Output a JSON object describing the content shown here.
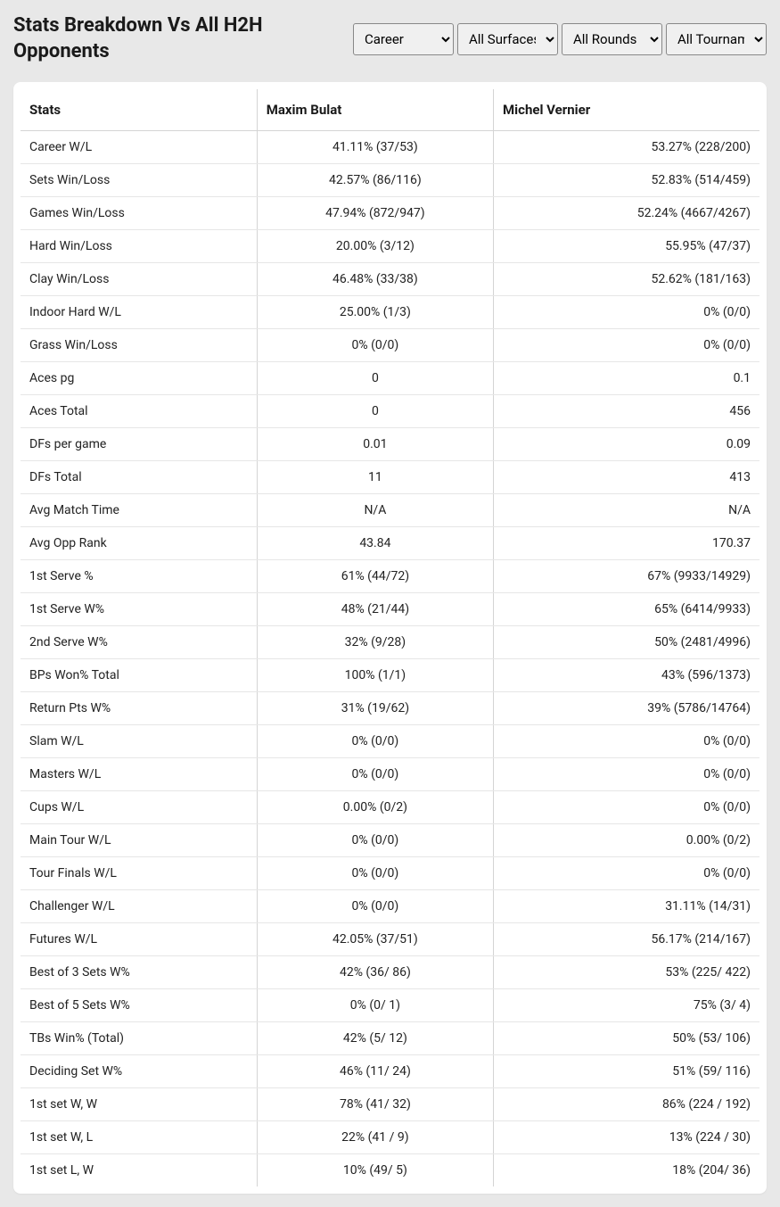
{
  "header": {
    "title": "Stats Breakdown Vs All H2H Opponents"
  },
  "filters": {
    "period": {
      "selected": "Career",
      "options": [
        "Career"
      ]
    },
    "surface": {
      "selected": "All Surfaces",
      "options": [
        "All Surfaces"
      ]
    },
    "rounds": {
      "selected": "All Rounds",
      "options": [
        "All Rounds"
      ]
    },
    "tournament": {
      "selected": "All Tournaments",
      "options": [
        "All Tournaments"
      ]
    }
  },
  "table": {
    "columns": [
      "Stats",
      "Maxim Bulat",
      "Michel Vernier"
    ],
    "rows": [
      [
        "Career W/L",
        "41.11% (37/53)",
        "53.27% (228/200)"
      ],
      [
        "Sets Win/Loss",
        "42.57% (86/116)",
        "52.83% (514/459)"
      ],
      [
        "Games Win/Loss",
        "47.94% (872/947)",
        "52.24% (4667/4267)"
      ],
      [
        "Hard Win/Loss",
        "20.00% (3/12)",
        "55.95% (47/37)"
      ],
      [
        "Clay Win/Loss",
        "46.48% (33/38)",
        "52.62% (181/163)"
      ],
      [
        "Indoor Hard W/L",
        "25.00% (1/3)",
        "0% (0/0)"
      ],
      [
        "Grass Win/Loss",
        "0% (0/0)",
        "0% (0/0)"
      ],
      [
        "Aces pg",
        "0",
        "0.1"
      ],
      [
        "Aces Total",
        "0",
        "456"
      ],
      [
        "DFs per game",
        "0.01",
        "0.09"
      ],
      [
        "DFs Total",
        "11",
        "413"
      ],
      [
        "Avg Match Time",
        "N/A",
        "N/A"
      ],
      [
        "Avg Opp Rank",
        "43.84",
        "170.37"
      ],
      [
        "1st Serve %",
        "61% (44/72)",
        "67% (9933/14929)"
      ],
      [
        "1st Serve W%",
        "48% (21/44)",
        "65% (6414/9933)"
      ],
      [
        "2nd Serve W%",
        "32% (9/28)",
        "50% (2481/4996)"
      ],
      [
        "BPs Won% Total",
        "100% (1/1)",
        "43% (596/1373)"
      ],
      [
        "Return Pts W%",
        "31% (19/62)",
        "39% (5786/14764)"
      ],
      [
        "Slam W/L",
        "0% (0/0)",
        "0% (0/0)"
      ],
      [
        "Masters W/L",
        "0% (0/0)",
        "0% (0/0)"
      ],
      [
        "Cups W/L",
        "0.00% (0/2)",
        "0% (0/0)"
      ],
      [
        "Main Tour W/L",
        "0% (0/0)",
        "0.00% (0/2)"
      ],
      [
        "Tour Finals W/L",
        "0% (0/0)",
        "0% (0/0)"
      ],
      [
        "Challenger W/L",
        "0% (0/0)",
        "31.11% (14/31)"
      ],
      [
        "Futures W/L",
        "42.05% (37/51)",
        "56.17% (214/167)"
      ],
      [
        "Best of 3 Sets W%",
        "42% (36/ 86)",
        "53% (225/ 422)"
      ],
      [
        "Best of 5 Sets W%",
        "0% (0/ 1)",
        "75% (3/ 4)"
      ],
      [
        "TBs Win% (Total)",
        "42% (5/ 12)",
        "50% (53/ 106)"
      ],
      [
        "Deciding Set W%",
        "46% (11/ 24)",
        "51% (59/ 116)"
      ],
      [
        "1st set W, W",
        "78% (41/ 32)",
        "86% (224 / 192)"
      ],
      [
        "1st set W, L",
        "22% (41 / 9)",
        "13% (224 / 30)"
      ],
      [
        "1st set L, W",
        "10% (49/ 5)",
        "18% (204/ 36)"
      ]
    ]
  },
  "styling": {
    "background_color": "#e8e8e8",
    "card_background": "#ffffff",
    "text_color": "#1a1a1a",
    "border_color": "#d4d4d4",
    "row_border_color": "#e6e6e6",
    "title_fontsize": 22,
    "header_fontsize": 15,
    "cell_fontsize": 14
  }
}
